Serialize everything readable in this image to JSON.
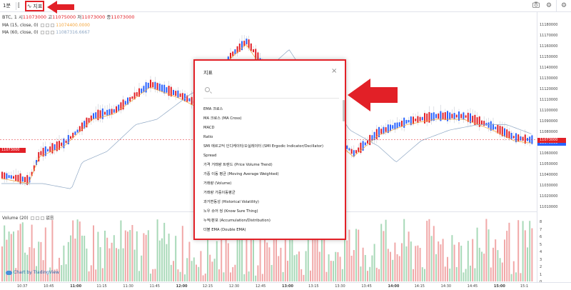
{
  "toolbar": {
    "interval": "1분",
    "indicators_label": "지표"
  },
  "legend": {
    "symbol": "BTC, 1",
    "open_label": "시",
    "open": "11073000",
    "high_label": "고",
    "high": "11075000",
    "low_label": "저",
    "low": "11073000",
    "close_label": "종",
    "close": "11073000",
    "ma1_label": "MA (15, close, 0)",
    "ma1_value": "11074400.0000",
    "ma2_label": "MA (60, close, 0)",
    "ma2_value": "11087316.6667"
  },
  "price_axis": {
    "labels": [
      "11180000",
      "11170000",
      "11160000",
      "11150000",
      "11140000",
      "11130000",
      "11120000",
      "11110000",
      "11100000",
      "11090000",
      "11080000",
      "11070000",
      "11060000",
      "11050000",
      "11040000",
      "11030000",
      "11020000",
      "11010000"
    ],
    "tag_blue": "11070000",
    "tag_red": "11073000"
  },
  "price_range": [
    11008000,
    11180000
  ],
  "left_price_tag": "11073000",
  "volume": {
    "legend": "Volume (20)",
    "legend_extra": "없음",
    "axis_labels": [
      "8",
      "7",
      "6",
      "5",
      "4",
      "3",
      "2",
      "1",
      "0"
    ],
    "badge": "Chart by TradingView"
  },
  "time_axis": {
    "labels": [
      "10:37",
      "10:45",
      "11:00",
      "11:15",
      "11:30",
      "11:45",
      "12:00",
      "12:15",
      "12:30",
      "12:45",
      "13:00",
      "13:15",
      "13:30",
      "13:45",
      "14:00",
      "14:15",
      "14:30",
      "14:45",
      "15:00",
      "15:1"
    ]
  },
  "dialog": {
    "title": "지표",
    "search_placeholder": "",
    "items": [
      "EMA 크로스",
      "MA 크로스 (MA Cross)",
      "MACD",
      "Ratio",
      "SMI 에르고딕 인디케이터/오실레이터 (SMI Ergodic Indicator/Oscillator)",
      "Spread",
      "가격 거래량 트렌드 (Price Volume Trend)",
      "가중 이동 평균 (Moving Average Weighted)",
      "거래량 (Volume)",
      "거래량 가중이동평균",
      "과거변동성 (Historical Volatility)",
      "노우 슈어 씽 (Know Sure Thing)",
      "누적/분포 (Accumulation/Distribution)",
      "더블 EMA (Double EMA)"
    ]
  },
  "colors": {
    "up": "#2962ff",
    "down": "#e22027",
    "ma1": "#f4a53a",
    "ma2": "#8ea7c4",
    "vol_up": "#a8d9b8",
    "vol_down": "#f1a8a8",
    "annotation": "#e22027"
  },
  "icons": [
    "compare-icon",
    "indicator-wave-icon",
    "camera-icon",
    "gear-icon",
    "close-icon",
    "search-icon",
    "tradingview-logo-icon"
  ]
}
